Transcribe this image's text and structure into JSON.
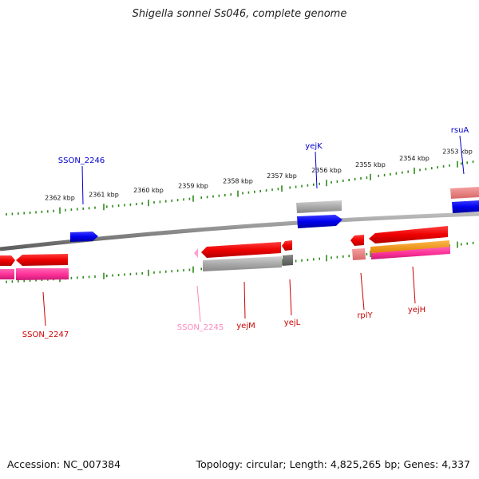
{
  "title": "Shigella sonnei Ss046, complete genome",
  "footer": {
    "accession": "Accession: NC_007384",
    "summary": "Topology: circular; Length: 4,825,265 bp; Genes: 4,337"
  },
  "colors": {
    "backbone": "#8a8a8a",
    "tick": "#2e8b1a",
    "forward_gene": "#0000e0",
    "reverse_gene": "#e00000",
    "pseudogene": "#ff99cc",
    "magenta_feature": "#ff3399",
    "orange_feature": "#ff9900",
    "grey_feature": "#aaaaaa",
    "salmon_feature": "#f08080"
  },
  "ticks": [
    {
      "label": "2362 kbp"
    },
    {
      "label": "2361 kbp"
    },
    {
      "label": "2360 kbp"
    },
    {
      "label": "2359 kbp"
    },
    {
      "label": "2358 kbp"
    },
    {
      "label": "2357 kbp"
    },
    {
      "label": "2356 kbp"
    },
    {
      "label": "2355 kbp"
    },
    {
      "label": "2354 kbp"
    },
    {
      "label": "2353 kbp"
    }
  ],
  "gene_labels": [
    {
      "name": "SSON_2246",
      "color": "#0000cc"
    },
    {
      "name": "yejK",
      "color": "#0000cc"
    },
    {
      "name": "rsuA",
      "color": "#0000cc"
    },
    {
      "name": "SSON_2247",
      "color": "#cc0000"
    },
    {
      "name": "SSON_2245",
      "color": "#ff88bb"
    },
    {
      "name": "yejM",
      "color": "#cc0000"
    },
    {
      "name": "yejL",
      "color": "#cc0000"
    },
    {
      "name": "rplY",
      "color": "#cc0000"
    },
    {
      "name": "yejH",
      "color": "#cc0000"
    }
  ]
}
